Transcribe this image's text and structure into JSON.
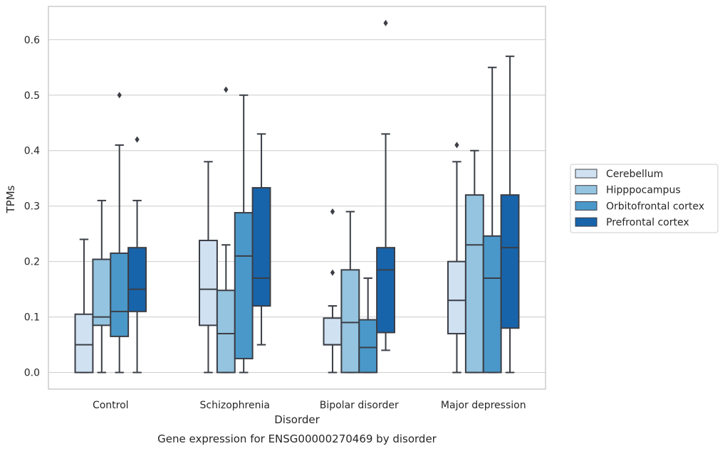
{
  "chart_data": {
    "type": "boxplot",
    "title": "",
    "caption": "Gene expression for ENSG00000270469 by disorder",
    "xlabel": "Disorder",
    "ylabel": "TPMs",
    "ylim": [
      -0.03,
      0.66
    ],
    "yticks": [
      "0.0",
      "0.1",
      "0.2",
      "0.3",
      "0.4",
      "0.5",
      "0.6"
    ],
    "categories": [
      "Control",
      "Schizophrenia",
      "Bipolar disorder",
      "Major depression"
    ],
    "grid": true,
    "legend_position": "right",
    "edge_color": "#3b3e46",
    "series": [
      {
        "name": "Cerebellum",
        "color": "#d0e1f2",
        "boxes": [
          {
            "whislo": 0.0,
            "q1": 0.0,
            "med": 0.05,
            "q3": 0.105,
            "whishi": 0.24,
            "fliers": []
          },
          {
            "whislo": 0.0,
            "q1": 0.085,
            "med": 0.15,
            "q3": 0.238,
            "whishi": 0.38,
            "fliers": []
          },
          {
            "whislo": 0.0,
            "q1": 0.05,
            "med": 0.05,
            "q3": 0.098,
            "whishi": 0.12,
            "fliers": [
              0.18,
              0.29
            ]
          },
          {
            "whislo": 0.0,
            "q1": 0.07,
            "med": 0.13,
            "q3": 0.2,
            "whishi": 0.38,
            "fliers": [
              0.41
            ]
          }
        ]
      },
      {
        "name": "Hipppocampus",
        "color": "#94c4df",
        "boxes": [
          {
            "whislo": 0.0,
            "q1": 0.085,
            "med": 0.1,
            "q3": 0.204,
            "whishi": 0.31,
            "fliers": []
          },
          {
            "whislo": 0.0,
            "q1": 0.0,
            "med": 0.07,
            "q3": 0.148,
            "whishi": 0.23,
            "fliers": [
              0.51
            ]
          },
          {
            "whislo": 0.0,
            "q1": 0.0,
            "med": 0.09,
            "q3": 0.185,
            "whishi": 0.29,
            "fliers": []
          },
          {
            "whislo": 0.0,
            "q1": 0.0,
            "med": 0.23,
            "q3": 0.32,
            "whishi": 0.4,
            "fliers": []
          }
        ]
      },
      {
        "name": "Orbitofrontal cortex",
        "color": "#4a98c9",
        "boxes": [
          {
            "whislo": 0.0,
            "q1": 0.065,
            "med": 0.11,
            "q3": 0.215,
            "whishi": 0.41,
            "fliers": [
              0.5
            ]
          },
          {
            "whislo": 0.0,
            "q1": 0.025,
            "med": 0.21,
            "q3": 0.288,
            "whishi": 0.5,
            "fliers": []
          },
          {
            "whislo": 0.0,
            "q1": 0.0,
            "med": 0.045,
            "q3": 0.095,
            "whishi": 0.17,
            "fliers": []
          },
          {
            "whislo": 0.0,
            "q1": 0.0,
            "med": 0.17,
            "q3": 0.246,
            "whishi": 0.55,
            "fliers": []
          }
        ]
      },
      {
        "name": "Prefrontal cortex",
        "color": "#1764ab",
        "boxes": [
          {
            "whislo": 0.0,
            "q1": 0.11,
            "med": 0.15,
            "q3": 0.225,
            "whishi": 0.31,
            "fliers": [
              0.42
            ]
          },
          {
            "whislo": 0.05,
            "q1": 0.12,
            "med": 0.17,
            "q3": 0.333,
            "whishi": 0.43,
            "fliers": []
          },
          {
            "whislo": 0.04,
            "q1": 0.072,
            "med": 0.185,
            "q3": 0.225,
            "whishi": 0.43,
            "fliers": [
              0.63
            ]
          },
          {
            "whislo": 0.0,
            "q1": 0.08,
            "med": 0.225,
            "q3": 0.32,
            "whishi": 0.57,
            "fliers": []
          }
        ]
      }
    ]
  }
}
